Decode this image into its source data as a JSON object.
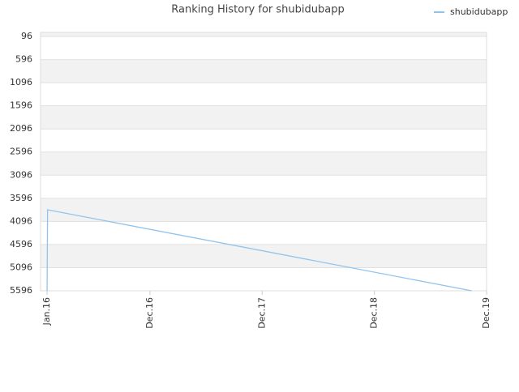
{
  "chart_data": {
    "type": "line",
    "title": "Ranking History for shubidubapp",
    "x": [
      0,
      0.05,
      45.4
    ],
    "series": [
      {
        "name": "shubidubapp",
        "color": "#90c4ee",
        "values": [
          5596,
          3844,
          5596
        ]
      }
    ],
    "xlim": [
      -0.7,
      47
    ],
    "xticks": [
      {
        "value": 0,
        "label": "Jan.16"
      },
      {
        "value": 11,
        "label": "Dec.16"
      },
      {
        "value": 23,
        "label": "Dec.17"
      },
      {
        "value": 35,
        "label": "Dec.18"
      },
      {
        "value": 47,
        "label": "Dec.19"
      }
    ],
    "ylim": [
      5596,
      8
    ],
    "yticks": [
      96,
      596,
      1096,
      1596,
      2096,
      2596,
      3096,
      3596,
      4096,
      4596,
      5096,
      5596
    ],
    "grid": true,
    "legend": "top-right"
  }
}
